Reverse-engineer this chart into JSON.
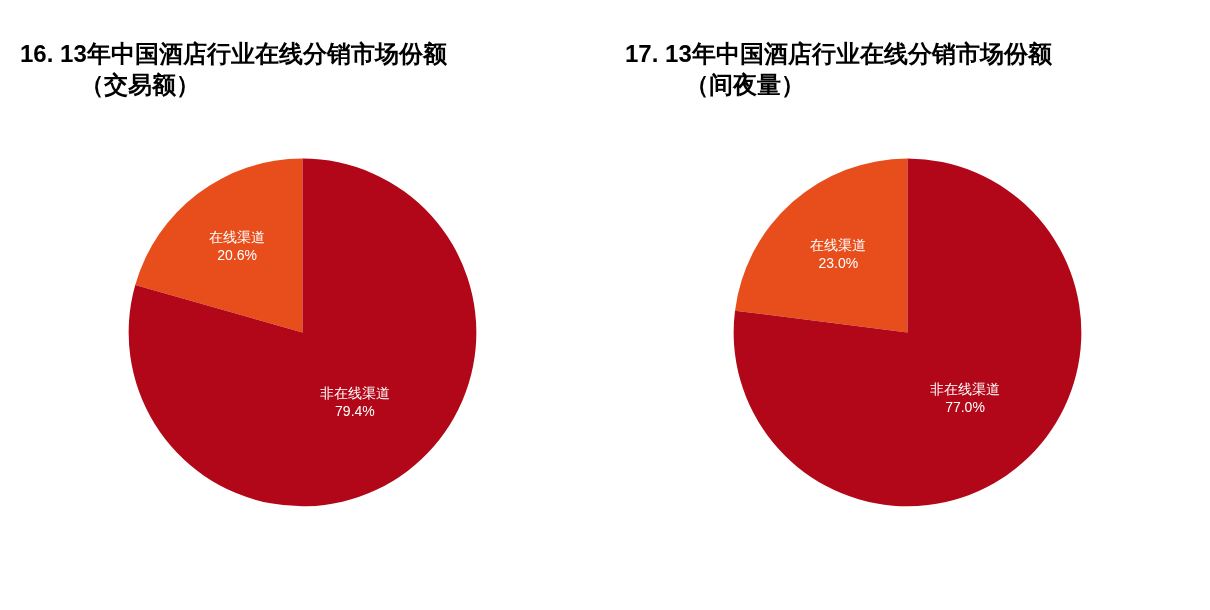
{
  "chart_data": [
    {
      "type": "pie",
      "title": "16. 13年中国酒店行业在线分销市场份额（交易额）",
      "categories": [
        "在线渠道",
        "非在线渠道"
      ],
      "values": [
        20.6,
        79.4
      ],
      "value_labels": [
        "20.6%",
        "79.4%"
      ],
      "colors": [
        "#e84e1c",
        "#b10718"
      ]
    },
    {
      "type": "pie",
      "title": "17. 13年中国酒店行业在线分销市场份额（间夜量）",
      "categories": [
        "在线渠道",
        "非在线渠道"
      ],
      "values": [
        23.0,
        77.0
      ],
      "value_labels": [
        "23.0%",
        "77.0%"
      ],
      "colors": [
        "#e84e1c",
        "#b10718"
      ]
    }
  ]
}
